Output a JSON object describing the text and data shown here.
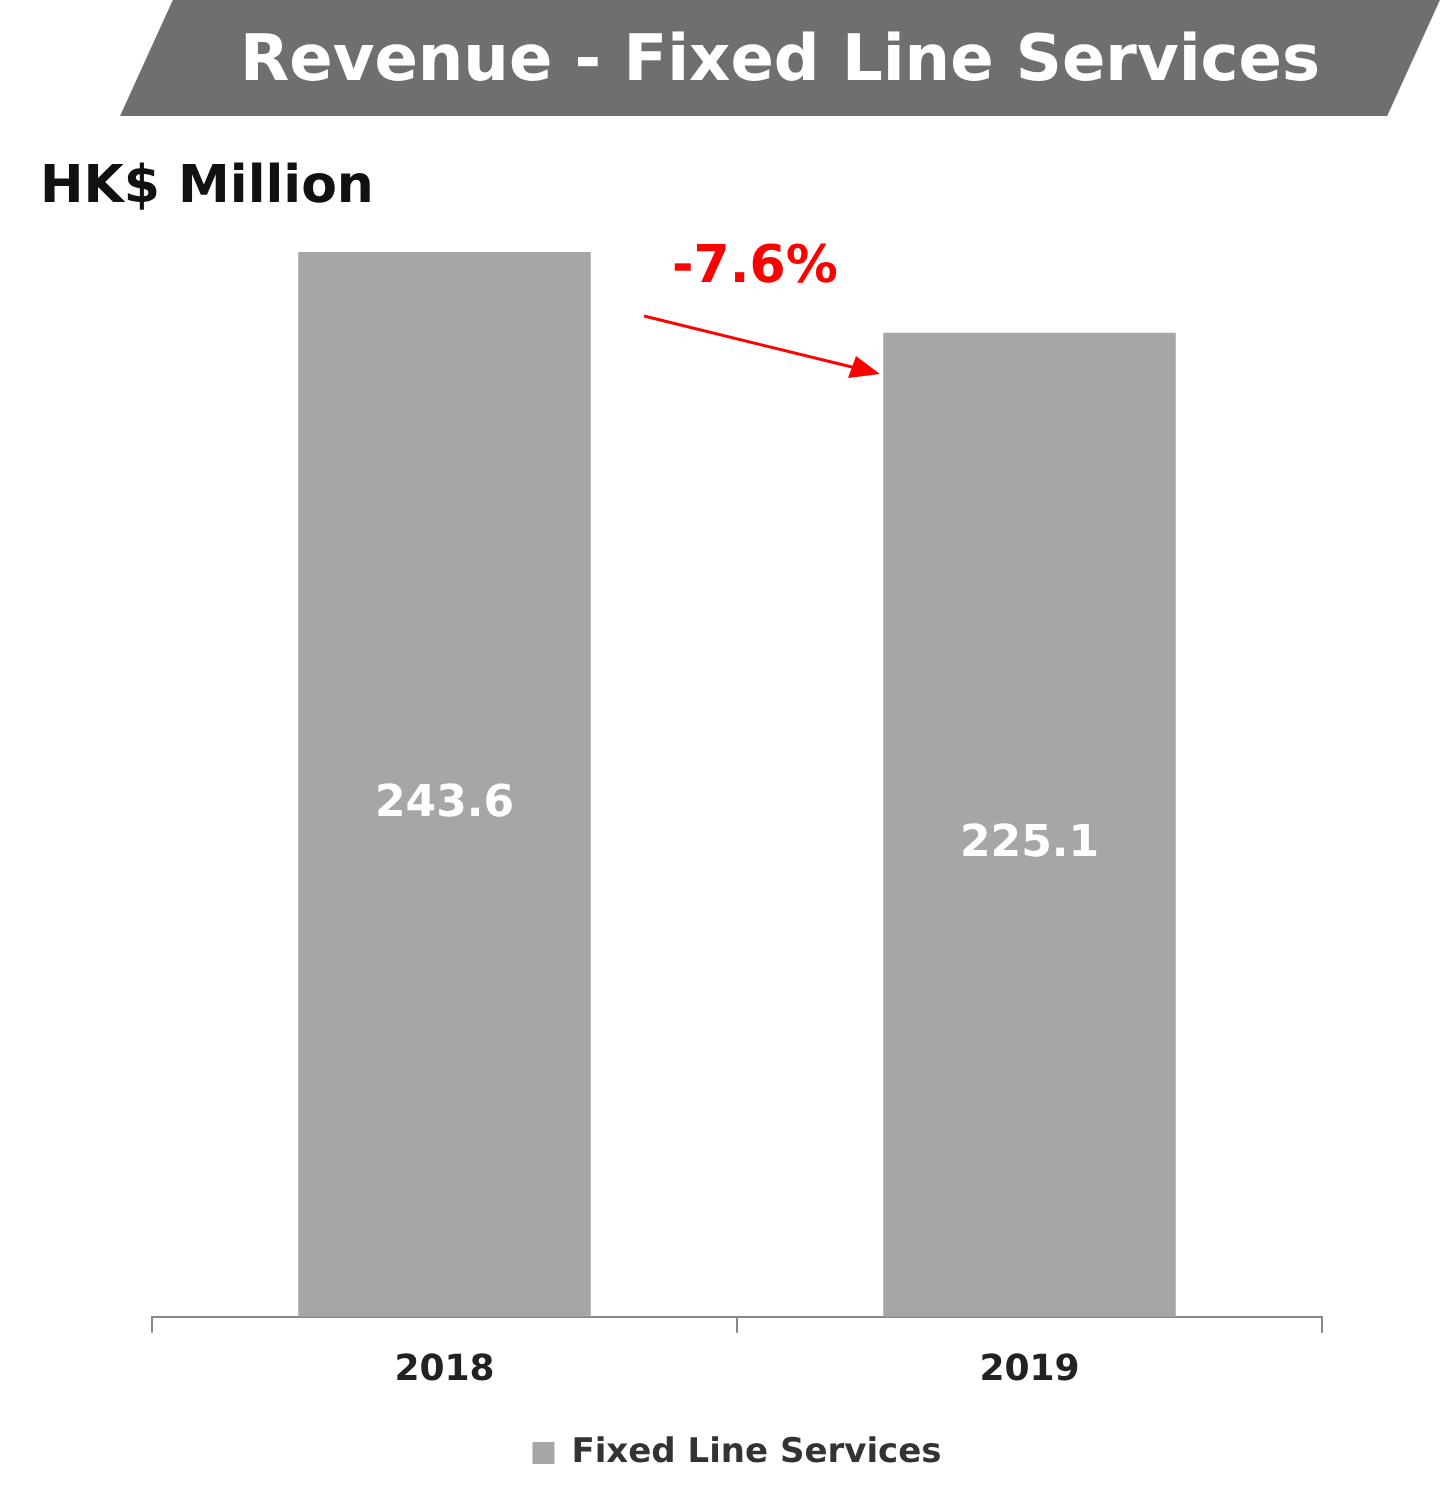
{
  "chart_data": {
    "type": "bar",
    "title": "Revenue - Fixed Line Services",
    "ylabel": "HK$ Million",
    "categories": [
      "2018",
      "2019"
    ],
    "series": [
      {
        "name": "Fixed Line Services",
        "color": "#a6a6a6",
        "values": [
          243.6,
          225.1
        ]
      }
    ],
    "data_labels": true,
    "annotations": [
      "-7.6%"
    ],
    "legend": "bottom"
  }
}
